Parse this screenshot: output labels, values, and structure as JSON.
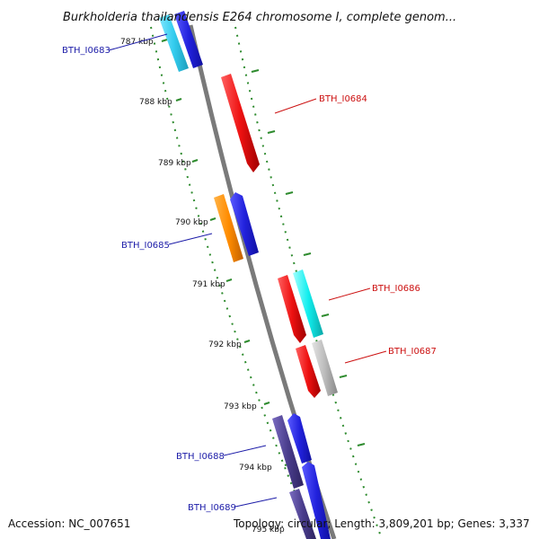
{
  "title": "Burkholderia thailandensis E264 chromosome I, complete genom...",
  "footer": {
    "accession": "Accession: NC_007651",
    "stats": "Topology: circular; Length: 3,809,201 bp; Genes: 3,337"
  },
  "colors": {
    "backbone": "#888888",
    "tick": "#2e8b2e",
    "label_blue": "#1c1ca8",
    "label_red": "#cc1111"
  },
  "ticks": [
    "787 kbp",
    "788 kbp",
    "789 kbp",
    "790 kbp",
    "791 kbp",
    "792 kbp",
    "793 kbp",
    "794 kbp",
    "795 kbp"
  ],
  "genes": [
    {
      "name": "BTH_I0683",
      "label_color": "#1c1ca8",
      "track_colors": [
        "#33ccee",
        "#2222dd"
      ]
    },
    {
      "name": "BTH_I0684",
      "label_color": "#cc1111",
      "track_colors": [
        "#ee1111"
      ]
    },
    {
      "name": "BTH_I0685",
      "label_color": "#1c1ca8",
      "track_colors": [
        "#ff8c00",
        "#2222dd"
      ]
    },
    {
      "name": "BTH_I0686",
      "label_color": "#cc1111",
      "track_colors": [
        "#ee1111",
        "#11eeee"
      ]
    },
    {
      "name": "BTH_I0687",
      "label_color": "#cc1111",
      "track_colors": [
        "#ee1111",
        "#bbbbbb"
      ]
    },
    {
      "name": "BTH_I0688",
      "label_color": "#1c1ca8",
      "track_colors": [
        "#4a3d8c",
        "#2222dd"
      ]
    },
    {
      "name": "BTH_I0689",
      "label_color": "#1c1ca8",
      "track_colors": [
        "#4a3d8c",
        "#2222dd"
      ]
    }
  ]
}
